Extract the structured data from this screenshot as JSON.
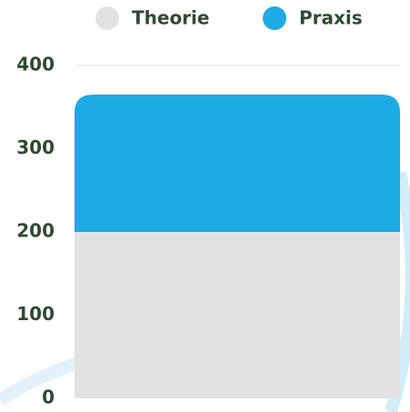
{
  "chart_data": {
    "type": "stacked-bar",
    "categories": [
      null
    ],
    "series": [
      {
        "name": "Theorie",
        "color": "#e2e2e2",
        "values": [
          200
        ]
      },
      {
        "name": "Praxis",
        "color": "#1eaae2",
        "values": [
          165
        ]
      }
    ],
    "ylim": [
      0,
      400
    ],
    "yticks": [
      0,
      100,
      200,
      300,
      400
    ],
    "grid": true,
    "legend": "top"
  }
}
